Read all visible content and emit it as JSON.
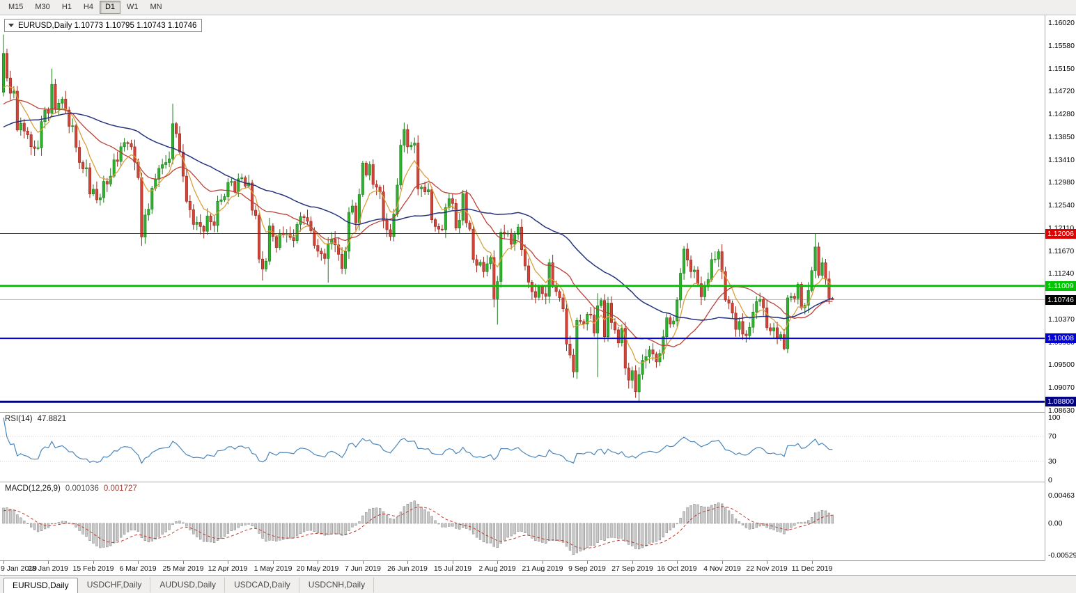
{
  "toolbar": {
    "timeframes": [
      {
        "label": "M15",
        "active": false
      },
      {
        "label": "M30",
        "active": false
      },
      {
        "label": "H1",
        "active": false
      },
      {
        "label": "H4",
        "active": false
      },
      {
        "label": "D1",
        "active": true
      },
      {
        "label": "W1",
        "active": false
      },
      {
        "label": "MN",
        "active": false
      }
    ]
  },
  "header": {
    "info_text": "EURUSD,Daily  1.10773 1.10795 1.10743 1.10746"
  },
  "rsi_panel": {
    "title": "RSI(14)",
    "value": "47.8821"
  },
  "macd_panel": {
    "title": "MACD(12,26,9)",
    "value1": "0.001036",
    "value2": "0.001727"
  },
  "tabs": [
    {
      "label": "EURUSD,Daily",
      "active": true
    },
    {
      "label": "USDCHF,Daily",
      "active": false
    },
    {
      "label": "AUDUSD,Daily",
      "active": false
    },
    {
      "label": "USDCAD,Daily",
      "active": false
    },
    {
      "label": "USDCNH,Daily",
      "active": false
    }
  ],
  "chart_data": {
    "type": "candlestick",
    "symbol": "EURUSD",
    "period": "Daily",
    "last_ohlc": {
      "open": 1.10773,
      "high": 1.10795,
      "low": 1.10743,
      "close": 1.10746
    },
    "ylim": [
      1.0863,
      1.1602
    ],
    "first_open": 1.147,
    "closes": [
      1.1544,
      1.1497,
      1.1468,
      1.1472,
      1.1398,
      1.1411,
      1.1396,
      1.1389,
      1.1366,
      1.1363,
      1.1364,
      1.1414,
      1.1436,
      1.143,
      1.1485,
      1.1437,
      1.1449,
      1.1457,
      1.1436,
      1.1405,
      1.1406,
      1.1365,
      1.1336,
      1.1324,
      1.1326,
      1.1276,
      1.1285,
      1.1265,
      1.1269,
      1.13,
      1.1295,
      1.131,
      1.1341,
      1.1338,
      1.1366,
      1.1374,
      1.1372,
      1.1366,
      1.1337,
      1.1307,
      1.1194,
      1.1236,
      1.1247,
      1.1287,
      1.1304,
      1.1325,
      1.1332,
      1.1336,
      1.1343,
      1.141,
      1.1391,
      1.1356,
      1.131,
      1.1262,
      1.1246,
      1.1218,
      1.1222,
      1.1214,
      1.1205,
      1.1234,
      1.1223,
      1.1216,
      1.1262,
      1.1265,
      1.1271,
      1.1298,
      1.13,
      1.128,
      1.1305,
      1.1307,
      1.1291,
      1.1297,
      1.1245,
      1.1235,
      1.1152,
      1.1133,
      1.1148,
      1.1215,
      1.1195,
      1.1174,
      1.1201,
      1.1198,
      1.1199,
      1.1193,
      1.1187,
      1.1218,
      1.1233,
      1.1231,
      1.1224,
      1.1206,
      1.1178,
      1.1167,
      1.1162,
      1.1153,
      1.1181,
      1.119,
      1.1179,
      1.1161,
      1.1134,
      1.1167,
      1.1241,
      1.1253,
      1.1221,
      1.1275,
      1.1335,
      1.1312,
      1.1332,
      1.1294,
      1.1289,
      1.128,
      1.1226,
      1.1208,
      1.1195,
      1.1238,
      1.1293,
      1.1369,
      1.1399,
      1.1366,
      1.1369,
      1.1373,
      1.1286,
      1.1289,
      1.128,
      1.1284,
      1.1227,
      1.1214,
      1.1209,
      1.1208,
      1.125,
      1.1267,
      1.1258,
      1.1211,
      1.1226,
      1.1277,
      1.1221,
      1.1209,
      1.1151,
      1.114,
      1.1146,
      1.1128,
      1.1143,
      1.1155,
      1.1076,
      1.1109,
      1.1203,
      1.12,
      1.1201,
      1.118,
      1.1199,
      1.1213,
      1.117,
      1.1139,
      1.1108,
      1.109,
      1.1079,
      1.1099,
      1.1086,
      1.1081,
      1.1145,
      1.1101,
      1.109,
      1.1078,
      1.1057,
      1.099,
      1.0969,
      1.0937,
      1.1035,
      1.1033,
      1.1028,
      1.1047,
      1.1045,
      1.1011,
      1.1063,
      1.1073,
      1.1004,
      1.1068,
      1.1031,
      1.1017,
      1.0992,
      1.102,
      1.0944,
      1.0921,
      1.0939,
      1.0899,
      1.0932,
      1.0959,
      1.0966,
      1.0979,
      1.0971,
      1.0956,
      1.0972,
      1.1004,
      1.104,
      1.1028,
      1.1034,
      1.1074,
      1.1125,
      1.1171,
      1.115,
      1.1128,
      1.1131,
      1.1105,
      1.108,
      1.1099,
      1.1113,
      1.1151,
      1.1152,
      1.1166,
      1.1128,
      1.1074,
      1.1068,
      1.1049,
      1.1018,
      1.1033,
      1.1009,
      1.1006,
      1.1022,
      1.1051,
      1.1071,
      1.1075,
      1.1059,
      1.1021,
      1.1015,
      1.1021,
      1.1001,
      1.1008,
      1.0981,
      1.1078,
      1.1081,
      1.1077,
      1.1104,
      1.1059,
      1.1064,
      1.1092,
      1.113,
      1.1175,
      1.1121,
      1.1145,
      1.1114,
      1.1077,
      1.10746
    ],
    "wick_overrides": {
      "0": [
        1.158,
        1.1462
      ],
      "14": [
        1.1515,
        null
      ],
      "40": [
        null,
        1.1177
      ],
      "49": [
        1.1448,
        null
      ],
      "75": [
        null,
        1.1111
      ],
      "94": [
        null,
        1.1107
      ],
      "116": [
        1.1412,
        null
      ],
      "142": [
        null,
        1.106
      ],
      "143": [
        null,
        1.1027
      ],
      "165": [
        null,
        1.0926
      ],
      "172": [
        1.1087,
        1.0927
      ],
      "181": [
        null,
        1.0905
      ],
      "184": [
        null,
        1.0879
      ],
      "226": [
        null,
        1.0978
      ],
      "235": [
        1.12,
        null
      ],
      "240": [
        1.10795,
        1.10743
      ]
    },
    "prehistory": {
      "start": 1.13,
      "end": 1.147,
      "bars": 60
    },
    "candle_colors": {
      "up": "#2db22d",
      "up_border": "#1d7a1d",
      "down": "#d0453a",
      "down_border": "#9a2418"
    },
    "levels": [
      {
        "price": 1.12006,
        "label": "1.12006",
        "color": "#e00000",
        "width": 1
      },
      {
        "price": 1.11009,
        "label": "1.11009",
        "color": "#00c400",
        "width": 3
      },
      {
        "price": 1.10008,
        "label": "1.10008",
        "color": "#0000d6",
        "width": 2
      },
      {
        "price": 1.088,
        "label": "1.08800",
        "color": "#000080",
        "width": 3
      }
    ],
    "current_price": {
      "price": 1.10746,
      "label": "1.10746",
      "line_color": "#bcbcbc",
      "box_color": "#000000"
    },
    "moving_averages": [
      {
        "period": 8,
        "type": "ema",
        "color": "#d9a03a",
        "width": 1.3,
        "name": "ma-fast-orange"
      },
      {
        "period": 21,
        "type": "sma",
        "color": "#bb4137",
        "width": 1.3,
        "name": "ma-mid-red"
      },
      {
        "period": 50,
        "type": "sma",
        "color": "#26337f",
        "width": 1.5,
        "name": "ma-slow-blue"
      }
    ],
    "y_ticks": [
      "1.16020",
      "1.15580",
      "1.15150",
      "1.14720",
      "1.14280",
      "1.13850",
      "1.13410",
      "1.12980",
      "1.12540",
      "1.12110",
      "1.11670",
      "1.11240",
      "1.10370",
      "1.09930",
      "1.09500",
      "1.09070",
      "1.08630"
    ],
    "x_labels": [
      "9 Jan 2019",
      "28 Jan 2019",
      "15 Feb 2019",
      "6 Mar 2019",
      "25 Mar 2019",
      "12 Apr 2019",
      "1 May 2019",
      "20 May 2019",
      "7 Jun 2019",
      "26 Jun 2019",
      "15 Jul 2019",
      "2 Aug 2019",
      "21 Aug 2019",
      "9 Sep 2019",
      "27 Sep 2019",
      "16 Oct 2019",
      "4 Nov 2019",
      "22 Nov 2019",
      "11 Dec 2019"
    ],
    "bars_per_label": 13,
    "rsi": {
      "period": 14,
      "color": "#4a86ba",
      "level_lines": [
        70,
        30
      ],
      "axis_labels": [
        {
          "v": 100,
          "t": "100"
        },
        {
          "v": 70,
          "t": "70"
        },
        {
          "v": 30,
          "t": "30"
        },
        {
          "v": 0,
          "t": "0"
        }
      ]
    },
    "macd": {
      "fast": 12,
      "slow": 26,
      "signal_period": 9,
      "hist_fill": "#c9c9c9",
      "hist_stroke": "#7d7d7d",
      "signal_color": "#c03a2e",
      "axis_labels": [
        {
          "v": 0.00463,
          "t": "0.00463"
        },
        {
          "v": 0,
          "t": "0.00"
        },
        {
          "v": -0.00529,
          "t": "-0.00529"
        }
      ]
    }
  }
}
